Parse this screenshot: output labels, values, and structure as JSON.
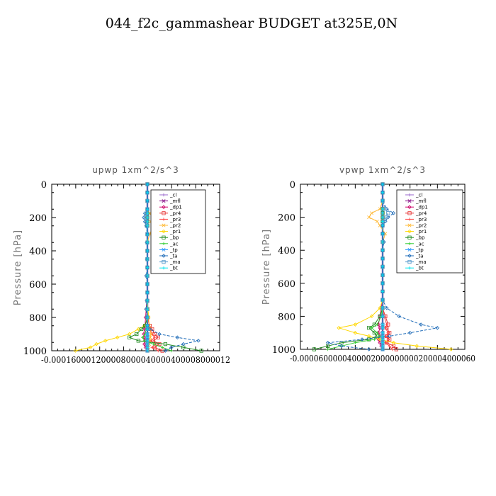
{
  "title": "044_f2c_gammashear  BUDGET at325E,0N",
  "chart_data": [
    {
      "type": "line",
      "title": "upwp   1xm^2/s^3",
      "ylabel": "Pressure [hPa]",
      "ylim": [
        1000,
        0
      ],
      "xlim": [
        -0.00016,
        0.00012
      ],
      "yticks": [
        "0",
        "200",
        "400",
        "600",
        "800",
        "1000"
      ],
      "xticks": [
        "-0.00016",
        "-0.00012",
        "-0.00008",
        "-0.00004",
        "0",
        "0.00004",
        "0.00008",
        "0.00012"
      ],
      "xtick_text": "-0.000160001200008000040000400008000012",
      "legend": [
        "_cl",
        "_mfl",
        "_dp1",
        "_pr4",
        "_pr3",
        "_pr2",
        "_pr1",
        "_bp",
        "_ac",
        "_tp",
        "_ta",
        "_ma",
        "_bt"
      ],
      "pressure": [
        0,
        50,
        100,
        150,
        175,
        200,
        225,
        250,
        300,
        350,
        400,
        450,
        500,
        550,
        600,
        650,
        700,
        750,
        800,
        850,
        870,
        900,
        920,
        940,
        960,
        980,
        1000
      ],
      "series": [
        {
          "name": "_cl",
          "color": "#9966cc",
          "values": [
            0,
            0,
            0,
            0,
            0,
            0,
            0,
            0,
            0,
            0,
            0,
            0,
            0,
            0,
            0,
            0,
            0,
            0,
            0,
            0,
            0,
            0,
            0,
            0,
            0,
            0,
            0
          ]
        },
        {
          "name": "_mfl",
          "color": "#800080",
          "values": [
            0,
            0,
            0,
            0,
            0,
            0,
            0,
            0,
            0,
            0,
            0,
            0,
            0,
            0,
            0,
            0,
            0,
            0,
            0,
            0,
            0,
            0,
            0,
            0,
            0,
            0,
            0
          ]
        },
        {
          "name": "_dp1",
          "color": "#cc0066",
          "values": [
            0,
            0,
            0,
            0,
            0,
            0,
            0,
            0,
            0,
            0,
            0,
            0,
            0,
            0,
            0,
            0,
            -1e-06,
            -2e-06,
            -3e-06,
            -4e-06,
            -5e-06,
            -6e-06,
            -5e-06,
            -4e-06,
            -5e-06,
            -3e-06,
            0
          ]
        },
        {
          "name": "_pr4",
          "color": "#e62e2e",
          "values": [
            0,
            0,
            0,
            0,
            0,
            0,
            0,
            0,
            0,
            0,
            0,
            0,
            0,
            0,
            0,
            0,
            0,
            0,
            0,
            4e-06,
            8e-06,
            1.2e-05,
            1.8e-05,
            1e-05,
            2e-05,
            1.2e-05,
            2.5e-05
          ]
        },
        {
          "name": "_pr3",
          "color": "#ff4444",
          "values": [
            0,
            0,
            0,
            0,
            0,
            0,
            0,
            0,
            0,
            0,
            0,
            0,
            0,
            0,
            0,
            0,
            0,
            0,
            0,
            0,
            4e-06,
            8e-06,
            1.2e-05,
            6e-06,
            1.4e-05,
            8e-06,
            1.8e-05
          ]
        },
        {
          "name": "_pr2",
          "color": "#ffb833",
          "values": [
            0,
            0,
            0,
            0,
            4e-06,
            1e-05,
            6e-06,
            1e-05,
            4e-06,
            0,
            0,
            0,
            0,
            0,
            0,
            0,
            0,
            1e-06,
            2e-06,
            3e-06,
            4e-06,
            6e-06,
            5e-06,
            4e-06,
            3e-06,
            2e-06,
            1e-06
          ]
        },
        {
          "name": "_pr1",
          "color": "#ffd700",
          "values": [
            0,
            0,
            0,
            0,
            0,
            0,
            0,
            0,
            0,
            0,
            0,
            0,
            0,
            0,
            0,
            0,
            0,
            1e-06,
            2e-06,
            -5e-06,
            -1.5e-05,
            -3e-05,
            -5e-05,
            -7e-05,
            -8.5e-05,
            -9.5e-05,
            -0.00012
          ]
        },
        {
          "name": "_bp",
          "color": "#228b22",
          "values": [
            0,
            0,
            0,
            0,
            0,
            0,
            0,
            0,
            0,
            0,
            0,
            0,
            0,
            0,
            0,
            0,
            0,
            0,
            0,
            -4e-06,
            -1e-05,
            -1.8e-05,
            -3e-05,
            -1.5e-05,
            3e-05,
            6e-05,
            9e-05
          ]
        },
        {
          "name": "_ac",
          "color": "#33cc33",
          "values": [
            0,
            0,
            0,
            0,
            0,
            0,
            0,
            0,
            0,
            0,
            0,
            0,
            0,
            0,
            0,
            0,
            0,
            0,
            0,
            0,
            -2e-06,
            -4e-06,
            -8e-06,
            -5e-06,
            1e-05,
            2.5e-05,
            4e-05
          ]
        },
        {
          "name": "_tp",
          "color": "#1e90ff",
          "values": [
            0,
            0,
            0,
            0,
            0,
            0,
            0,
            0,
            0,
            0,
            0,
            0,
            0,
            0,
            0,
            0,
            0,
            0,
            0,
            0,
            0,
            0,
            0,
            0,
            0,
            0,
            0
          ]
        },
        {
          "name": "_ta",
          "color": "#1e6bb8",
          "values": [
            0,
            0,
            0,
            0,
            -4e-06,
            -6e-06,
            -4e-06,
            -2e-06,
            0,
            -1e-06,
            0,
            -1e-06,
            0,
            -2e-06,
            0,
            0,
            -1e-06,
            -2e-06,
            -1e-06,
            0,
            4e-06,
            2e-05,
            5e-05,
            8.5e-05,
            6e-05,
            4e-05,
            3e-05
          ]
        },
        {
          "name": "_ma",
          "color": "#5599cc",
          "values": [
            0,
            0,
            0,
            0,
            -2e-06,
            -3e-06,
            -2e-06,
            -1e-06,
            0,
            0,
            0,
            0,
            0,
            0,
            0,
            0,
            0,
            0,
            0,
            0,
            0,
            0,
            0,
            0,
            0,
            0,
            0
          ]
        },
        {
          "name": "_bt",
          "color": "#00e5ee",
          "values": [
            0,
            0,
            0,
            0,
            0,
            0,
            0,
            0,
            0,
            0,
            0,
            0,
            0,
            0,
            0,
            0,
            0,
            0,
            0,
            0,
            0,
            0,
            0,
            0,
            0,
            0,
            0
          ]
        }
      ]
    },
    {
      "type": "line",
      "title": "vpwp   1xm^2/s^3",
      "ylabel": "Pressure [hPa]",
      "ylim": [
        1000,
        0
      ],
      "xlim": [
        -6e-05,
        6e-05
      ],
      "yticks": [
        "0",
        "200",
        "400",
        "600",
        "800",
        "1000"
      ],
      "xticks": [
        "-0.00006",
        "-0.00004",
        "-0.00002",
        "0",
        "0.00002",
        "0.00004",
        "0.00006"
      ],
      "xtick_text": "-0.0000600000400002000000000200004000060",
      "legend": [
        "_cl",
        "_mfl",
        "_dp1",
        "_pr4",
        "_pr3",
        "_pr2",
        "_pr1",
        "_bp",
        "_ac",
        "_tp",
        "_ta",
        "_ma",
        "_bt"
      ],
      "pressure": [
        0,
        50,
        100,
        150,
        175,
        200,
        225,
        250,
        300,
        350,
        400,
        450,
        500,
        550,
        600,
        650,
        700,
        750,
        800,
        850,
        870,
        900,
        920,
        940,
        960,
        980,
        1000
      ],
      "series": [
        {
          "name": "_cl",
          "color": "#9966cc",
          "values": [
            0,
            0,
            0,
            0,
            0,
            0,
            0,
            0,
            0,
            0,
            0,
            0,
            0,
            0,
            0,
            0,
            0,
            0,
            0,
            0,
            0,
            0,
            0,
            0,
            0,
            0,
            0
          ]
        },
        {
          "name": "_mfl",
          "color": "#800080",
          "values": [
            0,
            0,
            0,
            0,
            0,
            0,
            0,
            0,
            0,
            0,
            0,
            0,
            0,
            0,
            0,
            0,
            0,
            0,
            0,
            0,
            0,
            0,
            0,
            0,
            0,
            0,
            0
          ]
        },
        {
          "name": "_dp1",
          "color": "#cc0066",
          "values": [
            0,
            0,
            0,
            0,
            0,
            0,
            0,
            0,
            0,
            0,
            0,
            0,
            0,
            0,
            0,
            0,
            0,
            -1e-06,
            -2e-06,
            -3e-06,
            -2e-06,
            -3e-06,
            -2e-06,
            -3e-06,
            -2e-06,
            -1e-06,
            0
          ]
        },
        {
          "name": "_pr4",
          "color": "#e62e2e",
          "values": [
            0,
            0,
            0,
            0,
            0,
            0,
            0,
            0,
            0,
            0,
            0,
            0,
            0,
            0,
            0,
            0,
            0,
            0,
            2e-06,
            4e-06,
            3e-06,
            5e-06,
            3e-06,
            5e-06,
            3e-06,
            8e-06,
            1e-05
          ]
        },
        {
          "name": "_pr3",
          "color": "#ff4444",
          "values": [
            0,
            0,
            0,
            0,
            0,
            0,
            0,
            0,
            0,
            0,
            0,
            0,
            0,
            0,
            0,
            0,
            0,
            0,
            1e-06,
            3e-06,
            2e-06,
            4e-06,
            2e-06,
            4e-06,
            2e-06,
            5e-06,
            7e-06
          ]
        },
        {
          "name": "_pr2",
          "color": "#ffb833",
          "values": [
            0,
            0,
            0,
            -2e-06,
            -8e-06,
            -1e-05,
            -4e-06,
            -2e-06,
            2e-06,
            0,
            0,
            0,
            0,
            0,
            0,
            0,
            0,
            0,
            0,
            0,
            0,
            0,
            0,
            0,
            0,
            0,
            0
          ]
        },
        {
          "name": "_pr1",
          "color": "#ffd700",
          "values": [
            0,
            0,
            0,
            0,
            0,
            0,
            0,
            0,
            0,
            0,
            0,
            0,
            0,
            0,
            0,
            0,
            0,
            -2e-06,
            -8e-06,
            -2e-05,
            -3.2e-05,
            -2e-05,
            -1e-05,
            -2e-06,
            8e-06,
            2.5e-05,
            5e-05
          ]
        },
        {
          "name": "_bp",
          "color": "#228b22",
          "values": [
            0,
            0,
            0,
            0,
            0,
            0,
            0,
            0,
            0,
            0,
            0,
            0,
            0,
            0,
            0,
            0,
            0,
            0,
            -2e-06,
            -6e-06,
            -1e-05,
            -6e-06,
            -4e-06,
            -1e-05,
            -3e-05,
            -4e-05,
            -5e-05
          ]
        },
        {
          "name": "_ac",
          "color": "#33cc33",
          "values": [
            0,
            0,
            0,
            0,
            0,
            0,
            0,
            0,
            0,
            0,
            0,
            0,
            0,
            0,
            0,
            0,
            0,
            0,
            -1e-06,
            -4e-06,
            -8e-06,
            -4e-06,
            -2e-06,
            -6e-06,
            -2e-05,
            -3e-05,
            -4e-05
          ]
        },
        {
          "name": "_tp",
          "color": "#1e90ff",
          "values": [
            0,
            0,
            0,
            0,
            0,
            0,
            0,
            0,
            0,
            0,
            0,
            0,
            0,
            0,
            0,
            0,
            0,
            0,
            0,
            0,
            0,
            0,
            0,
            0,
            0,
            0,
            0
          ]
        },
        {
          "name": "_ta",
          "color": "#1e6bb8",
          "values": [
            0,
            0,
            0,
            3e-06,
            8e-06,
            4e-06,
            2e-06,
            0,
            0,
            1e-06,
            0,
            0,
            0,
            0,
            0,
            0,
            0,
            3e-06,
            1.2e-05,
            2.8e-05,
            4e-05,
            2e-05,
            5e-06,
            -1.5e-05,
            -4e-05,
            -3e-05,
            -1e-05
          ]
        },
        {
          "name": "_ma",
          "color": "#5599cc",
          "values": [
            0,
            0,
            0,
            2e-06,
            4e-06,
            2e-06,
            1e-06,
            0,
            0,
            0,
            0,
            0,
            0,
            0,
            0,
            0,
            0,
            0,
            0,
            0,
            0,
            0,
            0,
            0,
            0,
            0,
            0
          ]
        },
        {
          "name": "_bt",
          "color": "#00e5ee",
          "values": [
            0,
            0,
            0,
            0,
            0,
            0,
            0,
            0,
            0,
            0,
            0,
            0,
            0,
            0,
            0,
            0,
            0,
            0,
            0,
            0,
            0,
            0,
            0,
            0,
            0,
            0,
            0
          ]
        }
      ]
    }
  ]
}
